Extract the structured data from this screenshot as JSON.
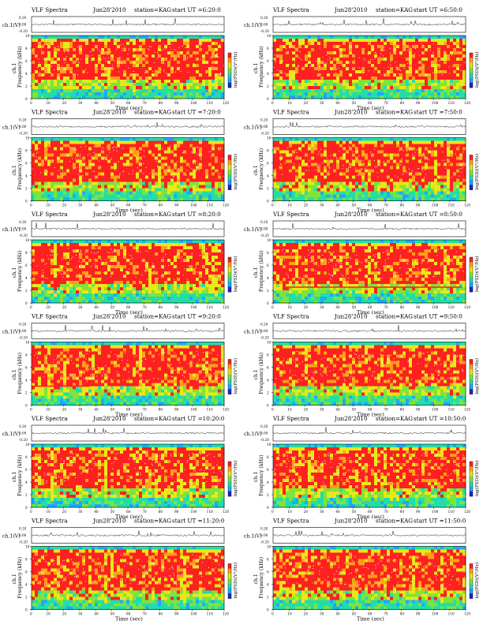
{
  "page": {
    "colors": {
      "spectrum": [
        "#2222cc",
        "#1ea7ff",
        "#22ddaa",
        "#7fe43a",
        "#e8e81a",
        "#ff9f1a",
        "#ff2020"
      ],
      "trace": "#222222",
      "background": "#ffffff"
    }
  },
  "chart_data": [
    {
      "type": "heatmap",
      "header": {
        "left": "VLF Spectra",
        "date": "Jun28'2010",
        "station": "station=KAG",
        "start": "start  UT =6:20:0"
      },
      "trace_ylabel": "ch.1(V)",
      "trace_ticks": [
        "0.20",
        "0.00",
        "-0.20"
      ],
      "ylabel": "Frequency (kHz)",
      "ylabel_extra": "ch.1",
      "yticks": [
        "10",
        "8",
        "6",
        "4",
        "2",
        "0"
      ],
      "ylim": [
        0,
        10
      ],
      "xlabel": "Time (sec)",
      "xticks": [
        "0",
        "10",
        "20",
        "30",
        "40",
        "50",
        "60",
        "70",
        "80",
        "90",
        "100",
        "110",
        "120"
      ],
      "xlim": [
        0,
        120
      ],
      "colorbar_label": "log(PSD)(V²/Hz)",
      "notes": "Spectrogram: 0–1 kHz green/cyan, 1–3 kHz green/yellow, 3–9 kHz dominated by red, cyan band near 9.5 kHz"
    },
    {
      "type": "heatmap",
      "header": {
        "left": "VLF Spectra",
        "date": "Jun28'2010",
        "station": "station=KAG",
        "start": "start  UT =6:50:0"
      },
      "trace_ylabel": "ch.1(V)",
      "trace_ticks": [
        "0.20",
        "0.00",
        "-0.20"
      ],
      "ylabel": "Frequency (kHz)",
      "ylabel_extra": "ch.1",
      "yticks": [
        "10",
        "8",
        "6",
        "4",
        "2",
        "0"
      ],
      "ylim": [
        0,
        10
      ],
      "xlabel": "Time (sec)",
      "xticks": [
        "0",
        "10",
        "20",
        "30",
        "40",
        "50",
        "60",
        "70",
        "80",
        "90",
        "100",
        "110",
        "120"
      ],
      "xlim": [
        0,
        120
      ],
      "colorbar_label": "log(PSD)(V²/Hz)"
    },
    {
      "type": "heatmap",
      "header": {
        "left": "VLF Spectra",
        "date": "Jun28'2010",
        "station": "station=KAG",
        "start": "start  UT =7:20:0"
      },
      "trace_ylabel": "ch.1(V)",
      "trace_ticks": [
        "0.20",
        "0.00",
        "-0.20"
      ],
      "ylabel": "Frequency (kHz)",
      "ylabel_extra": "ch.1",
      "yticks": [
        "10",
        "8",
        "6",
        "4",
        "2",
        "0"
      ],
      "ylim": [
        0,
        10
      ],
      "xlabel": "Time (sec)",
      "xticks": [
        "0",
        "10",
        "20",
        "30",
        "40",
        "50",
        "60",
        "70",
        "80",
        "90",
        "100",
        "110",
        "120"
      ],
      "xlim": [
        0,
        120
      ],
      "colorbar_label": "log(PSD)(V²/Hz)"
    },
    {
      "type": "heatmap",
      "header": {
        "left": "VLF Spectra",
        "date": "Jun28'2010",
        "station": "station=KAG",
        "start": "start  UT =7:50:0"
      },
      "trace_ylabel": "ch.1(V)",
      "trace_ticks": [
        "0.20",
        "0.00",
        "-0.20"
      ],
      "ylabel": "Frequency (kHz)",
      "ylabel_extra": "ch.1",
      "yticks": [
        "10",
        "8",
        "6",
        "4",
        "2",
        "0"
      ],
      "ylim": [
        0,
        10
      ],
      "xlabel": "Time (sec)",
      "xticks": [
        "0",
        "10",
        "20",
        "30",
        "40",
        "50",
        "60",
        "70",
        "80",
        "90",
        "100",
        "110",
        "120"
      ],
      "xlim": [
        0,
        120
      ],
      "colorbar_label": "log(PSD)(V²/Hz)"
    },
    {
      "type": "heatmap",
      "header": {
        "left": "VLF Spectra",
        "date": "Jun28'2010",
        "station": "station=KAG",
        "start": "start  UT =8:20:0"
      },
      "trace_ylabel": "ch.1(V)",
      "trace_ticks": [
        "0.20",
        "0.00",
        "-0.20"
      ],
      "ylabel": "Frequency (kHz)",
      "ylabel_extra": "ch.1",
      "yticks": [
        "10",
        "8",
        "6",
        "4",
        "2",
        "0"
      ],
      "ylim": [
        0,
        10
      ],
      "xlabel": "Time (sec)",
      "xticks": [
        "0",
        "10",
        "20",
        "30",
        "40",
        "50",
        "60",
        "70",
        "80",
        "90",
        "100",
        "110",
        "120"
      ],
      "xlim": [
        0,
        120
      ],
      "colorbar_label": "log(PSD)(V²/Hz)"
    },
    {
      "type": "heatmap",
      "header": {
        "left": "VLF Spectra",
        "date": "Jun28'2010",
        "station": "station=KAG",
        "start": "start  UT =8:50:0"
      },
      "trace_ylabel": "ch.1(V)",
      "trace_ticks": [
        "0.20",
        "0.00",
        "-0.20"
      ],
      "ylabel": "Frequency (kHz)",
      "ylabel_extra": "ch.1",
      "yticks": [
        "10",
        "8",
        "6",
        "4",
        "2",
        "0"
      ],
      "ylim": [
        0,
        10
      ],
      "xlabel": "Time (sec)",
      "xticks": [
        "0",
        "10",
        "20",
        "30",
        "40",
        "50",
        "60",
        "70",
        "80",
        "90",
        "100",
        "110",
        "120"
      ],
      "xlim": [
        0,
        120
      ],
      "colorbar_label": "log(PSD)(V²/Hz)",
      "notes": "Horizontal red line near 2.5 kHz visible"
    },
    {
      "type": "heatmap",
      "header": {
        "left": "VLF Spectra",
        "date": "Jun28'2010",
        "station": "station=KAG",
        "start": "start  UT =9:20:0"
      },
      "trace_ylabel": "ch.1(V)",
      "trace_ticks": [
        "0.20",
        "0.00",
        "-0.20"
      ],
      "ylabel": "Frequency (kHz)",
      "ylabel_extra": "ch.1",
      "yticks": [
        "10",
        "8",
        "6",
        "4",
        "2",
        "0"
      ],
      "ylim": [
        0,
        10
      ],
      "xlabel": "Time (sec)",
      "xticks": [
        "0",
        "10",
        "20",
        "30",
        "40",
        "50",
        "60",
        "70",
        "80",
        "90",
        "100",
        "110",
        "120"
      ],
      "xlim": [
        0,
        120
      ],
      "colorbar_label": "log(PSD)(V²/Hz)",
      "notes": "Horizontal red line near 3 kHz from 0–35 sec"
    },
    {
      "type": "heatmap",
      "header": {
        "left": "VLF Spectra",
        "date": "Jun28'2010",
        "station": "station=KAG",
        "start": "start  UT =9:50:0"
      },
      "trace_ylabel": "ch.1(V)",
      "trace_ticks": [
        "0.20",
        "0.00",
        "-0.20"
      ],
      "ylabel": "Frequency (kHz)",
      "ylabel_extra": "ch.1",
      "yticks": [
        "10",
        "8",
        "6",
        "4",
        "2",
        "0"
      ],
      "ylim": [
        0,
        10
      ],
      "xlabel": "Time (sec)",
      "xticks": [
        "0",
        "10",
        "20",
        "30",
        "40",
        "50",
        "60",
        "70",
        "80",
        "90",
        "100",
        "110",
        "120"
      ],
      "xlim": [
        0,
        120
      ],
      "colorbar_label": "log(PSD)(V²/Hz)"
    },
    {
      "type": "heatmap",
      "header": {
        "left": "VLF Spectra",
        "date": "Jun28'2010",
        "station": "station=KAG",
        "start": "start  UT =10:20:0"
      },
      "trace_ylabel": "ch.1(V)",
      "trace_ticks": [
        "0.20",
        "0.00",
        "-0.20"
      ],
      "ylabel": "Frequency (kHz)",
      "ylabel_extra": "ch.1",
      "yticks": [
        "10",
        "8",
        "6",
        "4",
        "2",
        "0"
      ],
      "ylim": [
        0,
        10
      ],
      "xlabel": "Time (sec)",
      "xticks": [
        "0",
        "10",
        "20",
        "30",
        "40",
        "50",
        "60",
        "70",
        "80",
        "90",
        "100",
        "110",
        "120"
      ],
      "xlim": [
        0,
        120
      ],
      "colorbar_label": "log(PSD)(V²/Hz)"
    },
    {
      "type": "heatmap",
      "header": {
        "left": "VLF Spectra",
        "date": "Jun28'2010",
        "station": "station=KAG",
        "start": "start  UT =10:50:0"
      },
      "trace_ylabel": "ch.1(V)",
      "trace_ticks": [
        "0.20",
        "0.00",
        "-0.20"
      ],
      "ylabel": "Frequency (kHz)",
      "ylabel_extra": "ch.1",
      "yticks": [
        "10",
        "8",
        "6",
        "4",
        "2",
        "0"
      ],
      "ylim": [
        0,
        10
      ],
      "xlabel": "Time (sec)",
      "xticks": [
        "0",
        "10",
        "20",
        "30",
        "40",
        "50",
        "60",
        "70",
        "80",
        "90",
        "100",
        "110",
        "120"
      ],
      "xlim": [
        0,
        120
      ],
      "colorbar_label": "log(PSD)(V²/Hz)"
    },
    {
      "type": "heatmap",
      "header": {
        "left": "VLF Spectra",
        "date": "Jun28'2010",
        "station": "station=KAG",
        "start": "start  UT =11:20:0"
      },
      "trace_ylabel": "ch.1(V)",
      "trace_ticks": [
        "0.20",
        "0.00",
        "-0.20"
      ],
      "ylabel": "Frequency (kHz)",
      "ylabel_extra": "ch.1",
      "yticks": [
        "10",
        "8",
        "6",
        "4",
        "2",
        "0"
      ],
      "ylim": [
        0,
        10
      ],
      "xlabel": "Time (sec)",
      "xticks": [
        "0",
        "10",
        "20",
        "30",
        "40",
        "50",
        "60",
        "70",
        "80",
        "90",
        "100",
        "110",
        "120"
      ],
      "xlim": [
        0,
        120
      ],
      "colorbar_label": "log(PSD)(V²/Hz)"
    },
    {
      "type": "heatmap",
      "header": {
        "left": "VLF Spectra",
        "date": "Jun28'2010",
        "station": "station=KAG",
        "start": "start  UT =11:50:0"
      },
      "trace_ylabel": "ch.1(V)",
      "trace_ticks": [
        "0.20",
        "0.00",
        "-0.20"
      ],
      "ylabel": "Frequency (kHz)",
      "ylabel_extra": "ch.1",
      "yticks": [
        "10",
        "8",
        "6",
        "4",
        "2",
        "0"
      ],
      "ylim": [
        0,
        10
      ],
      "xlabel": "Time (sec)",
      "xticks": [
        "0",
        "10",
        "20",
        "30",
        "40",
        "50",
        "60",
        "70",
        "80",
        "90",
        "100",
        "110",
        "120"
      ],
      "xlim": [
        0,
        120
      ],
      "colorbar_label": "log(PSD)(V²/Hz)"
    }
  ]
}
